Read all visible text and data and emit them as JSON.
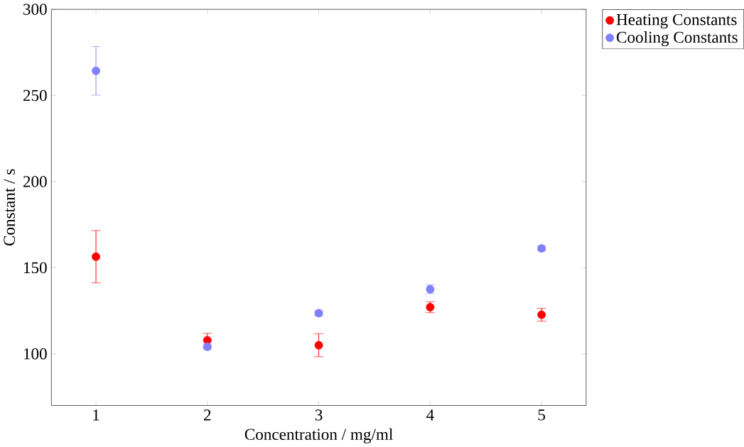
{
  "chart_data": {
    "type": "scatter",
    "xlabel": "Concentration / mg/ml",
    "ylabel": "Constant / s",
    "x": [
      1,
      2,
      3,
      4,
      5
    ],
    "series": [
      {
        "name": "Heating Constants",
        "color": "#ff0000",
        "values": [
          156.4,
          107.9,
          105.0,
          127.1,
          122.7
        ],
        "errors": [
          15.2,
          4,
          6.7,
          3.2,
          3.7
        ]
      },
      {
        "name": "Cooling Constants",
        "color": "#8080ff",
        "values": [
          264.3,
          104.1,
          123.6,
          137.5,
          161.2
        ],
        "errors": [
          14.1,
          1.5,
          1.5,
          2.5,
          1.5
        ]
      }
    ],
    "xlim": [
      0.6,
      5.4
    ],
    "ylim": [
      70,
      300
    ],
    "xticks": [
      1,
      2,
      3,
      4,
      5
    ],
    "yticks": [
      100,
      150,
      200,
      250,
      300
    ],
    "grid": false,
    "legend": "top right",
    "marker": "circle"
  }
}
